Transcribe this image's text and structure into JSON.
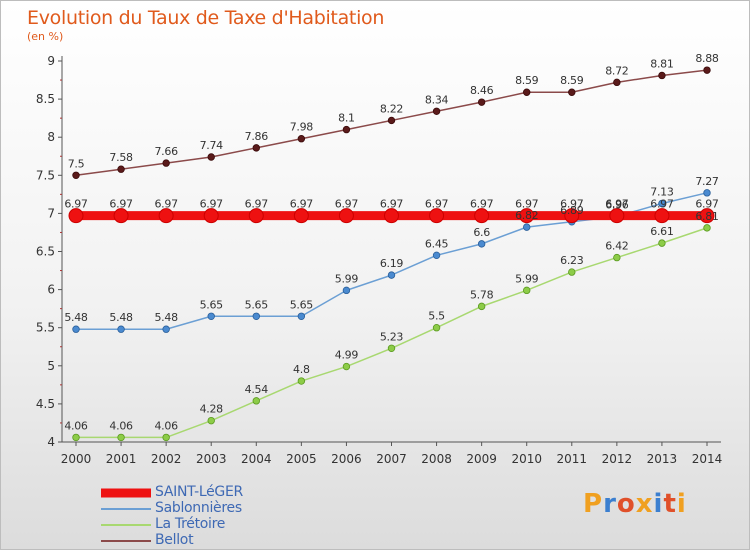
{
  "chart_data": {
    "type": "line",
    "title": "Evolution du Taux de Taxe d'Habitation",
    "subtitle": "(en %)",
    "xlabel": "",
    "ylabel": "",
    "x": [
      2000,
      2001,
      2002,
      2003,
      2004,
      2005,
      2006,
      2007,
      2008,
      2009,
      2010,
      2011,
      2012,
      2013,
      2014
    ],
    "ylim": [
      4,
      9
    ],
    "yticks": [
      4,
      4.5,
      5,
      5.5,
      6,
      6.5,
      7,
      7.5,
      8,
      8.5,
      9
    ],
    "grid": false,
    "legend_position": "bottom-left",
    "series": [
      {
        "name": "SAINT-LéGER",
        "color": "#ee1111",
        "values": [
          6.97,
          6.97,
          6.97,
          6.97,
          6.97,
          6.97,
          6.97,
          6.97,
          6.97,
          6.97,
          6.97,
          6.97,
          6.97,
          6.97,
          6.97
        ],
        "labels": [
          "6.97",
          "6.97",
          "6.97",
          "6.97",
          "6.97",
          "6.97",
          "6.97",
          "6.97",
          "6.97",
          "6.97",
          "6.97",
          "6.97",
          "6.97",
          "6.97",
          "6.97"
        ]
      },
      {
        "name": "Sablonnières",
        "color": "#6b9fd4",
        "values": [
          5.48,
          5.48,
          5.48,
          5.65,
          5.65,
          5.65,
          5.99,
          6.19,
          6.45,
          6.6,
          6.82,
          6.89,
          6.96,
          7.13,
          7.27
        ],
        "labels": [
          "5.48",
          "5.48",
          "5.48",
          "5.65",
          "5.65",
          "5.65",
          "5.99",
          "6.19",
          "6.45",
          "6.6",
          "6.82",
          "6.89",
          "6.96",
          "7.13",
          "7.27"
        ]
      },
      {
        "name": "La Trétoire",
        "color": "#a8d870",
        "values": [
          4.06,
          4.06,
          4.06,
          4.28,
          4.54,
          4.8,
          4.99,
          5.23,
          5.5,
          5.78,
          5.99,
          6.23,
          6.42,
          6.61,
          6.81
        ],
        "labels": [
          "4.06",
          "4.06",
          "4.06",
          "4.28",
          "4.54",
          "4.8",
          "4.99",
          "5.23",
          "5.5",
          "5.78",
          "5.99",
          "6.23",
          "6.42",
          "6.61",
          "6.81"
        ]
      },
      {
        "name": "Bellot",
        "color": "#8b4a4a",
        "values": [
          7.5,
          7.58,
          7.66,
          7.74,
          7.86,
          7.98,
          8.1,
          8.22,
          8.34,
          8.46,
          8.59,
          8.59,
          8.72,
          8.81,
          8.88
        ],
        "labels": [
          "7.5",
          "7.58",
          "7.66",
          "7.74",
          "7.86",
          "7.98",
          "8.1",
          "8.22",
          "8.34",
          "8.46",
          "8.59",
          "8.59",
          "8.72",
          "8.81",
          "8.88"
        ]
      }
    ]
  },
  "brand": {
    "letters": [
      "P",
      "r",
      "o",
      "x",
      "i",
      "t",
      "i"
    ],
    "colors": [
      "#f0a020",
      "#3b7fd0",
      "#e0502a",
      "#f0a020",
      "#3b7fd0",
      "#e0502a",
      "#f0a020"
    ]
  }
}
